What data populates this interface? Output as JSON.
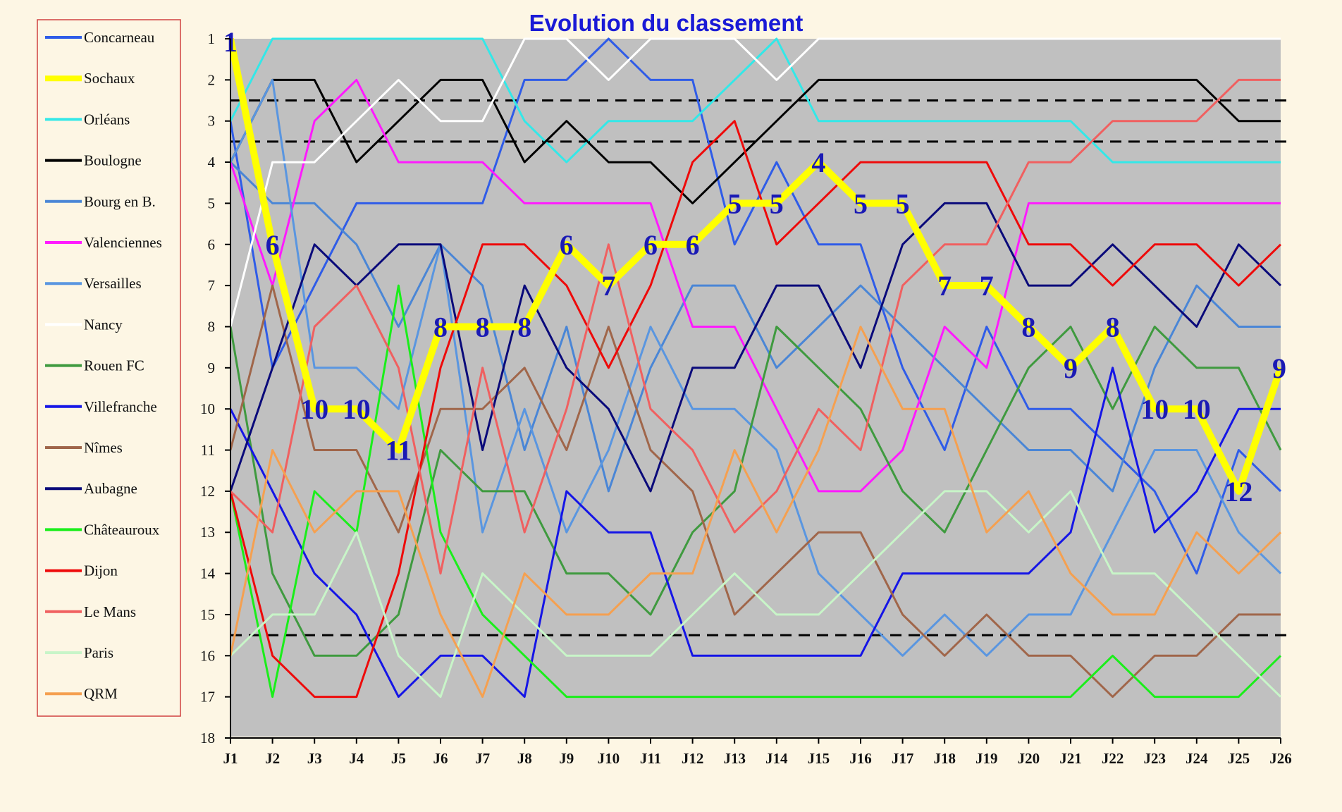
{
  "colors": {
    "background": "#fdf6e4",
    "plot_bg": "#c0c0c0",
    "legend_border": "#d04040"
  },
  "chart_data": {
    "type": "line",
    "title": "Evolution du classement",
    "y_inverted": true,
    "ylim": [
      1,
      18
    ],
    "yticks": [
      "1",
      "2",
      "3",
      "4",
      "5",
      "6",
      "7",
      "8",
      "9",
      "10",
      "11",
      "12",
      "13",
      "14",
      "15",
      "16",
      "17",
      "18"
    ],
    "categories": [
      "J1",
      "J2",
      "J3",
      "J4",
      "J5",
      "J6",
      "J7",
      "J8",
      "J9",
      "J10",
      "J11",
      "J12",
      "J13",
      "J14",
      "J15",
      "J16",
      "J17",
      "J18",
      "J19",
      "J20",
      "J21",
      "J22",
      "J23",
      "J24",
      "J25",
      "J26"
    ],
    "reference_lines": [
      2.5,
      3.5,
      15.5
    ],
    "legend_position": "left",
    "highlight_series": "Sochaux",
    "highlight_labels": [
      "1",
      "6",
      "10",
      "10",
      "11",
      "8",
      "8",
      "8",
      "6",
      "7",
      "6",
      "6",
      "5",
      "5",
      "4",
      "5",
      "5",
      "7",
      "7",
      "8",
      "9",
      "8",
      "10",
      "10",
      "12",
      "9"
    ],
    "series": [
      {
        "name": "Concarneau",
        "color": "#2f5ce8",
        "width": 3,
        "values": [
          3,
          9,
          7,
          5,
          5,
          5,
          5,
          2,
          2,
          1,
          2,
          2,
          6,
          4,
          6,
          6,
          9,
          11,
          8,
          10,
          10,
          11,
          12,
          14,
          11,
          12
        ]
      },
      {
        "name": "Sochaux",
        "color": "#ffff00",
        "width": 10,
        "values": [
          1,
          6,
          10,
          10,
          11,
          8,
          8,
          8,
          6,
          7,
          6,
          6,
          5,
          5,
          4,
          5,
          5,
          7,
          7,
          8,
          9,
          8,
          10,
          10,
          12,
          9
        ]
      },
      {
        "name": "Orléans",
        "color": "#33e8e8",
        "width": 3,
        "values": [
          3,
          1,
          1,
          1,
          1,
          1,
          1,
          3,
          4,
          3,
          3,
          3,
          2,
          1,
          3,
          3,
          3,
          3,
          3,
          3,
          3,
          4,
          4,
          4,
          4,
          4
        ]
      },
      {
        "name": "Boulogne",
        "color": "#000000",
        "width": 3,
        "values": [
          4,
          2,
          2,
          4,
          3,
          2,
          2,
          4,
          3,
          4,
          4,
          5,
          4,
          3,
          2,
          2,
          2,
          2,
          2,
          2,
          2,
          2,
          2,
          2,
          3,
          3
        ]
      },
      {
        "name": "Bourg en B.",
        "color": "#4a86d6",
        "width": 3,
        "values": [
          4,
          5,
          5,
          6,
          8,
          6,
          7,
          11,
          8,
          12,
          9,
          7,
          7,
          9,
          8,
          7,
          8,
          9,
          10,
          11,
          11,
          12,
          9,
          7,
          8,
          8
        ]
      },
      {
        "name": "Valenciennes",
        "color": "#ff1aff",
        "width": 3,
        "values": [
          4,
          7,
          3,
          2,
          4,
          4,
          4,
          5,
          5,
          5,
          5,
          8,
          8,
          10,
          12,
          12,
          11,
          8,
          9,
          5,
          5,
          5,
          5,
          5,
          5,
          5
        ]
      },
      {
        "name": "Versailles",
        "color": "#5a96e0",
        "width": 3,
        "values": [
          4,
          2,
          9,
          9,
          10,
          6,
          13,
          10,
          13,
          11,
          8,
          10,
          10,
          11,
          14,
          15,
          16,
          15,
          16,
          15,
          15,
          13,
          11,
          11,
          13,
          14
        ]
      },
      {
        "name": "Nancy",
        "color": "#ffffff",
        "width": 3,
        "values": [
          8,
          4,
          4,
          3,
          2,
          3,
          3,
          1,
          1,
          2,
          1,
          1,
          1,
          2,
          1,
          1,
          1,
          1,
          1,
          1,
          1,
          1,
          1,
          1,
          1,
          1
        ]
      },
      {
        "name": "Rouen FC",
        "color": "#3f9a3f",
        "width": 3,
        "values": [
          8,
          14,
          16,
          16,
          15,
          11,
          12,
          12,
          14,
          14,
          15,
          13,
          12,
          8,
          9,
          10,
          12,
          13,
          11,
          9,
          8,
          10,
          8,
          9,
          9,
          11
        ]
      },
      {
        "name": "Villefranche",
        "color": "#1515e6",
        "width": 3,
        "values": [
          10,
          12,
          14,
          15,
          17,
          16,
          16,
          17,
          12,
          13,
          13,
          16,
          16,
          16,
          16,
          16,
          14,
          14,
          14,
          14,
          13,
          9,
          13,
          12,
          10,
          10
        ]
      },
      {
        "name": "Nîmes",
        "color": "#a0664a",
        "width": 3,
        "values": [
          11,
          7,
          11,
          11,
          13,
          10,
          10,
          9,
          11,
          8,
          11,
          12,
          15,
          14,
          13,
          13,
          15,
          16,
          15,
          16,
          16,
          17,
          16,
          16,
          15,
          15
        ]
      },
      {
        "name": "Aubagne",
        "color": "#0a0a7a",
        "width": 3,
        "values": [
          12,
          9,
          6,
          7,
          6,
          6,
          11,
          7,
          9,
          10,
          12,
          9,
          9,
          7,
          7,
          9,
          6,
          5,
          5,
          7,
          7,
          6,
          7,
          8,
          6,
          7
        ]
      },
      {
        "name": "Châteauroux",
        "color": "#1aee1a",
        "width": 3,
        "values": [
          12,
          17,
          12,
          13,
          7,
          13,
          15,
          16,
          17,
          17,
          17,
          17,
          17,
          17,
          17,
          17,
          17,
          17,
          17,
          17,
          17,
          16,
          17,
          17,
          17,
          16
        ]
      },
      {
        "name": "Dijon",
        "color": "#ee0a0a",
        "width": 3,
        "values": [
          12,
          16,
          17,
          17,
          14,
          9,
          6,
          6,
          7,
          9,
          7,
          4,
          3,
          6,
          5,
          4,
          4,
          4,
          4,
          6,
          6,
          7,
          6,
          6,
          7,
          6
        ]
      },
      {
        "name": "Le Mans",
        "color": "#f06060",
        "width": 3,
        "values": [
          12,
          13,
          8,
          7,
          9,
          14,
          9,
          13,
          10,
          6,
          10,
          11,
          13,
          12,
          10,
          11,
          7,
          6,
          6,
          4,
          4,
          3,
          3,
          3,
          2,
          2
        ]
      },
      {
        "name": "Paris",
        "color": "#c8f5c8",
        "width": 3,
        "values": [
          16,
          15,
          15,
          13,
          16,
          17,
          14,
          15,
          16,
          16,
          16,
          15,
          14,
          15,
          15,
          14,
          13,
          12,
          12,
          13,
          12,
          14,
          14,
          15,
          16,
          17
        ]
      },
      {
        "name": "QRM",
        "color": "#f5a050",
        "width": 3,
        "values": [
          16,
          11,
          13,
          12,
          12,
          15,
          17,
          14,
          15,
          15,
          14,
          14,
          11,
          13,
          11,
          8,
          10,
          10,
          13,
          12,
          14,
          15,
          15,
          13,
          14,
          13
        ]
      }
    ]
  }
}
